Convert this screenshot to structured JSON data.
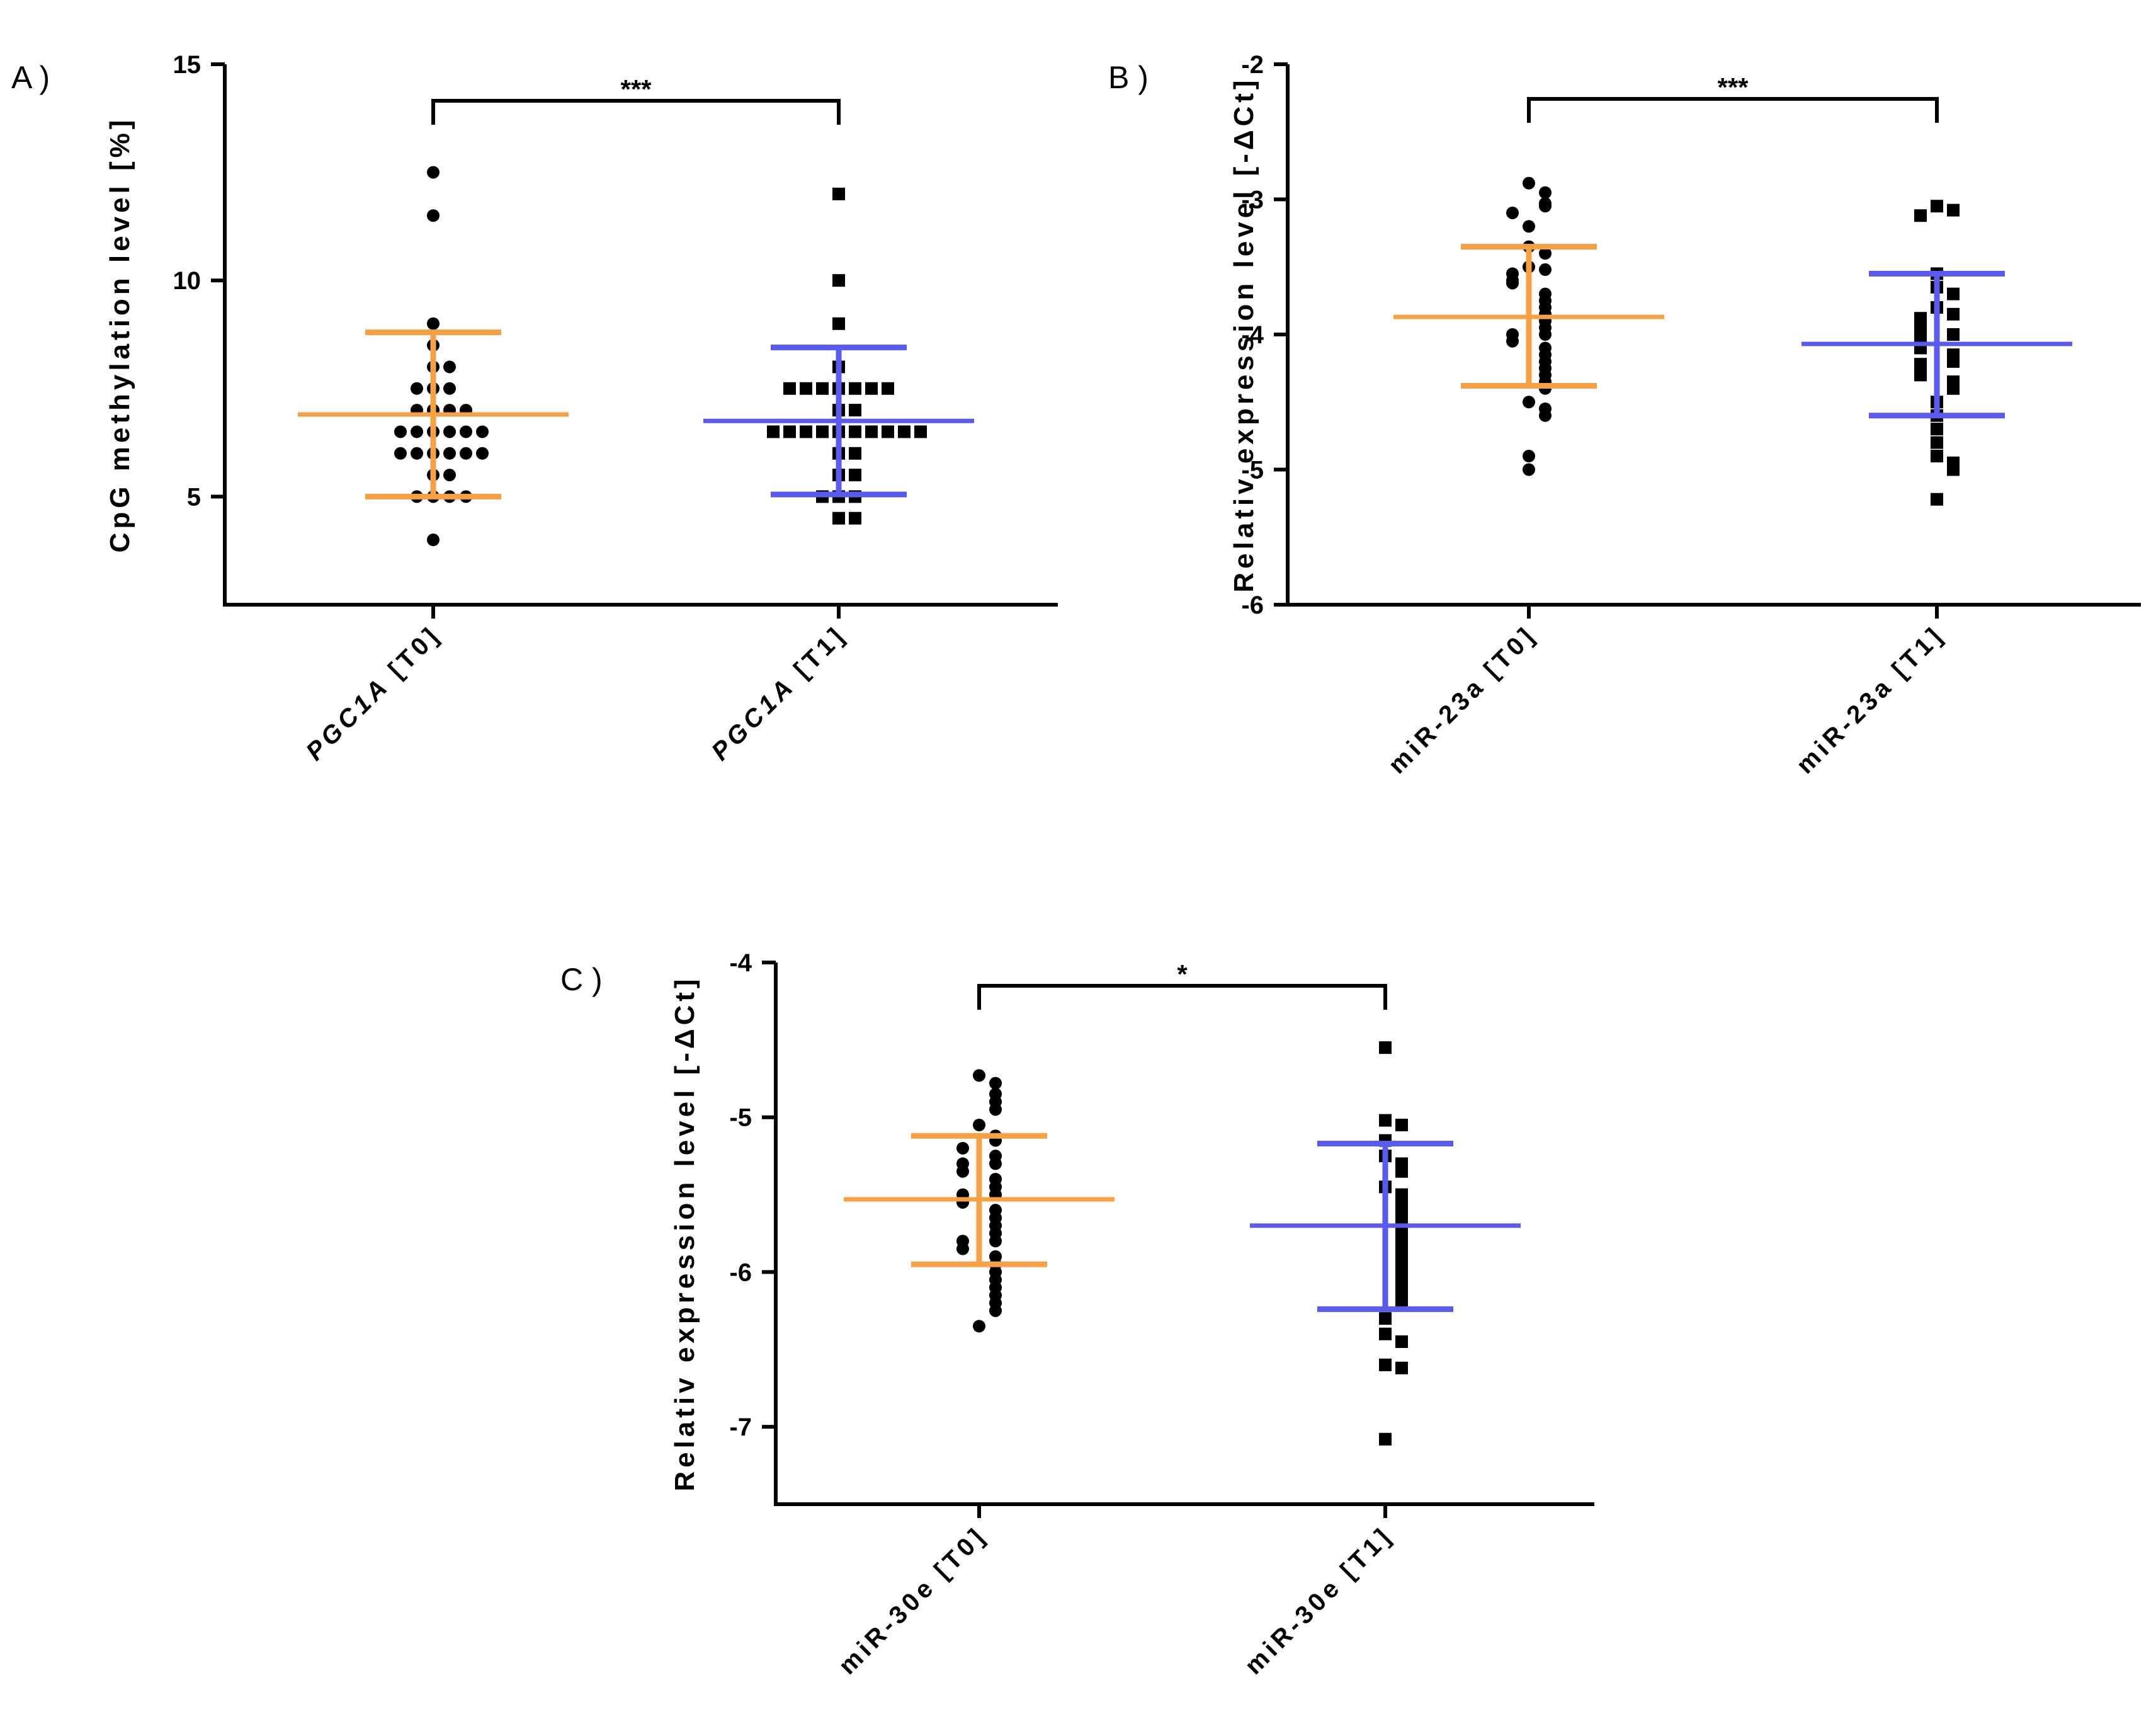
{
  "chart_data": [
    {
      "panel": "A )",
      "type": "scatter",
      "ylabel": "CpG methylation level [%]",
      "ylim": [
        2.5,
        15
      ],
      "yticks": [
        5,
        10,
        15
      ],
      "categories": [
        "PGC1A [T0]",
        "PGC1A [T1]"
      ],
      "category_prefix": [
        "PGC1A",
        "PGC1A"
      ],
      "category_suffix": [
        " [T0]",
        " [T1]"
      ],
      "category_italic_prefix": true,
      "significance": "***",
      "series": [
        {
          "marker": "circle",
          "color": "#f7a145",
          "mean": 6.9,
          "sd_low": 5.0,
          "sd_high": 8.8,
          "points": [
            12.5,
            11.5,
            9.0,
            8.5,
            8.0,
            8.0,
            7.5,
            7.5,
            7.5,
            7.0,
            7.0,
            7.0,
            7.0,
            6.5,
            6.5,
            6.5,
            6.5,
            6.5,
            6.5,
            6.0,
            6.0,
            6.0,
            6.0,
            6.0,
            6.0,
            5.5,
            5.5,
            5.0,
            5.0,
            5.0,
            5.0,
            4.0
          ]
        },
        {
          "marker": "square",
          "color": "#5a5aef",
          "mean": 6.75,
          "sd_low": 5.05,
          "sd_high": 8.45,
          "points": [
            12.0,
            10.0,
            9.0,
            8.0,
            7.5,
            7.5,
            7.5,
            7.5,
            7.5,
            7.5,
            7.5,
            7.0,
            7.0,
            6.5,
            6.5,
            6.5,
            6.5,
            6.5,
            6.5,
            6.5,
            6.5,
            6.5,
            6.5,
            6.0,
            6.0,
            5.5,
            5.5,
            5.0,
            5.0,
            5.0,
            4.5,
            4.5
          ]
        }
      ]
    },
    {
      "panel": "B )",
      "type": "scatter",
      "ylabel": "Relativ expression level [-ΔCt]",
      "ylim": [
        -6,
        -2
      ],
      "yticks": [
        -6,
        -5,
        -4,
        -3,
        -2
      ],
      "categories": [
        "miR-23a [T0]",
        "miR-23a [T1]"
      ],
      "category_prefix": [
        "",
        ""
      ],
      "category_suffix": [
        "miR-23a [T0]",
        "miR-23a [T1]"
      ],
      "category_italic_prefix": false,
      "significance": "***",
      "series": [
        {
          "marker": "circle",
          "color": "#f7a145",
          "mean": -3.87,
          "sd_low": -4.38,
          "sd_high": -3.35,
          "points": [
            -2.88,
            -2.95,
            -3.03,
            -3.05,
            -3.1,
            -3.2,
            -3.35,
            -3.4,
            -3.5,
            -3.52,
            -3.55,
            -3.6,
            -3.62,
            -3.7,
            -3.75,
            -3.8,
            -3.85,
            -3.9,
            -3.95,
            -4.0,
            -4.0,
            -4.05,
            -4.1,
            -4.15,
            -4.2,
            -4.25,
            -4.3,
            -4.35,
            -4.4,
            -4.5,
            -4.55,
            -4.6,
            -4.9,
            -5.0
          ]
        },
        {
          "marker": "square",
          "color": "#5a5aef",
          "mean": -4.07,
          "sd_low": -4.6,
          "sd_high": -3.55,
          "points": [
            -3.05,
            -3.08,
            -3.12,
            -3.55,
            -3.65,
            -3.7,
            -3.8,
            -3.85,
            -3.88,
            -3.9,
            -3.95,
            -4.0,
            -4.02,
            -4.05,
            -4.1,
            -4.15,
            -4.2,
            -4.22,
            -4.25,
            -4.3,
            -4.35,
            -4.4,
            -4.5,
            -4.6,
            -4.7,
            -4.8,
            -4.9,
            -4.95,
            -5.0,
            -5.22
          ]
        }
      ]
    },
    {
      "panel": "C )",
      "type": "scatter",
      "ylabel": "Relativ expression level [-ΔCt]",
      "ylim": [
        -7.5,
        -4
      ],
      "yticks": [
        -7,
        -6,
        -5,
        -4
      ],
      "categories": [
        "miR-30e [T0]",
        "miR-30e [T1]"
      ],
      "category_prefix": [
        "",
        ""
      ],
      "category_suffix": [
        "miR-30e [T0]",
        "miR-30e [T1]"
      ],
      "category_italic_prefix": false,
      "significance": "*",
      "series": [
        {
          "marker": "circle",
          "color": "#f7a145",
          "mean": -5.53,
          "sd_low": -5.95,
          "sd_high": -5.12,
          "points": [
            -4.73,
            -4.78,
            -4.85,
            -4.9,
            -4.95,
            -5.05,
            -5.12,
            -5.15,
            -5.2,
            -5.25,
            -5.3,
            -5.3,
            -5.35,
            -5.4,
            -5.45,
            -5.5,
            -5.5,
            -5.55,
            -5.6,
            -5.65,
            -5.7,
            -5.75,
            -5.8,
            -5.8,
            -5.85,
            -5.9,
            -5.95,
            -6.0,
            -6.05,
            -6.1,
            -6.15,
            -6.2,
            -6.25,
            -6.35
          ]
        },
        {
          "marker": "square",
          "color": "#5a5aef",
          "mean": -5.7,
          "sd_low": -6.24,
          "sd_high": -5.17,
          "points": [
            -4.55,
            -5.02,
            -5.05,
            -5.15,
            -5.25,
            -5.3,
            -5.35,
            -5.45,
            -5.5,
            -5.55,
            -5.6,
            -5.65,
            -5.7,
            -5.75,
            -5.8,
            -5.85,
            -5.9,
            -5.95,
            -6.0,
            -6.05,
            -6.1,
            -6.15,
            -6.2,
            -6.3,
            -6.4,
            -6.45,
            -6.6,
            -6.62,
            -7.08
          ]
        }
      ]
    }
  ]
}
